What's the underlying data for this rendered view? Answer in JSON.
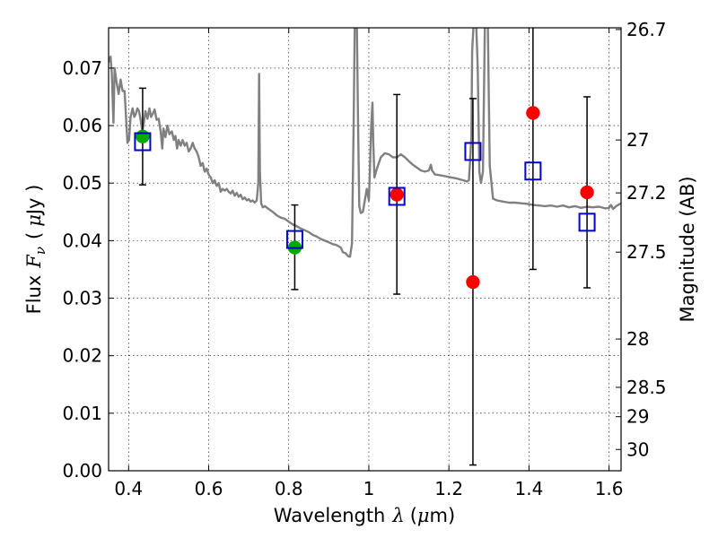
{
  "chart_data": {
    "type": "scatter",
    "xlabel_text": "Wavelength",
    "xlabel_symbol": "λ",
    "xlabel_unit_prefix": "(",
    "xlabel_unit_mu": "μ",
    "xlabel_unit_suffix": "m)",
    "ylabel_text": "Flux",
    "ylabel_symbol": "F",
    "ylabel_sub": "ν",
    "ylabel_unit_prefix": "(",
    "ylabel_unit_mu": "μ",
    "ylabel_unit_suffix": "Jy )",
    "y2label": "Magnitude (AB)",
    "xlim": [
      0.35,
      1.63
    ],
    "ylim": [
      0.0,
      0.077
    ],
    "grid": true,
    "x_ticks": [
      {
        "value": 0.4,
        "label": "0.4"
      },
      {
        "value": 0.6,
        "label": "0.6"
      },
      {
        "value": 0.8,
        "label": "0.8"
      },
      {
        "value": 1.0,
        "label": "1"
      },
      {
        "value": 1.2,
        "label": "1.2"
      },
      {
        "value": 1.4,
        "label": "1.4"
      },
      {
        "value": 1.6,
        "label": "1.6"
      }
    ],
    "y_ticks": [
      {
        "value": 0.0,
        "label": "0.00"
      },
      {
        "value": 0.01,
        "label": "0.01"
      },
      {
        "value": 0.02,
        "label": "0.02"
      },
      {
        "value": 0.03,
        "label": "0.03"
      },
      {
        "value": 0.04,
        "label": "0.04"
      },
      {
        "value": 0.05,
        "label": "0.05"
      },
      {
        "value": 0.06,
        "label": "0.06"
      },
      {
        "value": 0.07,
        "label": "0.07"
      }
    ],
    "mag_ticks": [
      {
        "flux": 0.0767,
        "label": "26.7"
      },
      {
        "flux": 0.0575,
        "label": "27"
      },
      {
        "flux": 0.0483,
        "label": "27.2"
      },
      {
        "flux": 0.038,
        "label": "27.5"
      },
      {
        "flux": 0.0229,
        "label": "28"
      },
      {
        "flux": 0.0145,
        "label": "28.5"
      },
      {
        "flux": 0.0094,
        "label": "29"
      },
      {
        "flux": 0.0037,
        "label": "30"
      }
    ],
    "model_spectrum": {
      "color": "#808080",
      "points": [
        [
          0.35,
          0.071
        ],
        [
          0.355,
          0.072
        ],
        [
          0.358,
          0.069
        ],
        [
          0.362,
          0.0605
        ],
        [
          0.365,
          0.07
        ],
        [
          0.37,
          0.0675
        ],
        [
          0.375,
          0.0655
        ],
        [
          0.38,
          0.068
        ],
        [
          0.385,
          0.066
        ],
        [
          0.39,
          0.066
        ],
        [
          0.394,
          0.061
        ],
        [
          0.397,
          0.057
        ],
        [
          0.401,
          0.0575
        ],
        [
          0.405,
          0.0615
        ],
        [
          0.41,
          0.063
        ],
        [
          0.414,
          0.0615
        ],
        [
          0.418,
          0.062
        ],
        [
          0.422,
          0.063
        ],
        [
          0.426,
          0.0625
        ],
        [
          0.43,
          0.061
        ],
        [
          0.434,
          0.059
        ],
        [
          0.438,
          0.0605
        ],
        [
          0.442,
          0.0625
        ],
        [
          0.447,
          0.0612
        ],
        [
          0.452,
          0.063
        ],
        [
          0.456,
          0.0615
        ],
        [
          0.46,
          0.062
        ],
        [
          0.465,
          0.0628
        ],
        [
          0.47,
          0.061
        ],
        [
          0.475,
          0.0612
        ],
        [
          0.48,
          0.059
        ],
        [
          0.484,
          0.056
        ],
        [
          0.487,
          0.0595
        ],
        [
          0.492,
          0.058
        ],
        [
          0.497,
          0.06
        ],
        [
          0.502,
          0.0585
        ],
        [
          0.508,
          0.059
        ],
        [
          0.513,
          0.0575
        ],
        [
          0.517,
          0.0582
        ],
        [
          0.521,
          0.056
        ],
        [
          0.525,
          0.0575
        ],
        [
          0.53,
          0.0565
        ],
        [
          0.535,
          0.0575
        ],
        [
          0.54,
          0.0565
        ],
        [
          0.545,
          0.057
        ],
        [
          0.55,
          0.0555
        ],
        [
          0.555,
          0.056
        ],
        [
          0.56,
          0.057
        ],
        [
          0.565,
          0.056
        ],
        [
          0.57,
          0.0555
        ],
        [
          0.575,
          0.0545
        ],
        [
          0.58,
          0.053
        ],
        [
          0.585,
          0.0535
        ],
        [
          0.59,
          0.052
        ],
        [
          0.595,
          0.0525
        ],
        [
          0.6,
          0.0515
        ],
        [
          0.605,
          0.051
        ],
        [
          0.61,
          0.05
        ],
        [
          0.615,
          0.0505
        ],
        [
          0.62,
          0.0495
        ],
        [
          0.625,
          0.05
        ],
        [
          0.63,
          0.0485
        ],
        [
          0.635,
          0.049
        ],
        [
          0.64,
          0.0487
        ],
        [
          0.645,
          0.049
        ],
        [
          0.65,
          0.0485
        ],
        [
          0.655,
          0.0482
        ],
        [
          0.66,
          0.0487
        ],
        [
          0.665,
          0.0478
        ],
        [
          0.67,
          0.0483
        ],
        [
          0.675,
          0.0476
        ],
        [
          0.68,
          0.048
        ],
        [
          0.685,
          0.0472
        ],
        [
          0.69,
          0.0475
        ],
        [
          0.695,
          0.047
        ],
        [
          0.7,
          0.0472
        ],
        [
          0.705,
          0.0468
        ],
        [
          0.71,
          0.047
        ],
        [
          0.715,
          0.0466
        ],
        [
          0.72,
          0.047
        ],
        [
          0.724,
          0.05
        ],
        [
          0.726,
          0.069
        ],
        [
          0.728,
          0.052
        ],
        [
          0.731,
          0.0465
        ],
        [
          0.735,
          0.0458
        ],
        [
          0.74,
          0.046
        ],
        [
          0.75,
          0.0455
        ],
        [
          0.76,
          0.045
        ],
        [
          0.77,
          0.0444
        ],
        [
          0.78,
          0.044
        ],
        [
          0.79,
          0.0438
        ],
        [
          0.8,
          0.0433
        ],
        [
          0.81,
          0.0428
        ],
        [
          0.82,
          0.0425
        ],
        [
          0.83,
          0.0421
        ],
        [
          0.84,
          0.0418
        ],
        [
          0.85,
          0.0415
        ],
        [
          0.86,
          0.041
        ],
        [
          0.87,
          0.0407
        ],
        [
          0.88,
          0.0403
        ],
        [
          0.89,
          0.04
        ],
        [
          0.9,
          0.0397
        ],
        [
          0.91,
          0.0394
        ],
        [
          0.92,
          0.0392
        ],
        [
          0.93,
          0.0388
        ],
        [
          0.935,
          0.038
        ],
        [
          0.942,
          0.0378
        ],
        [
          0.948,
          0.0373
        ],
        [
          0.953,
          0.0372
        ],
        [
          0.958,
          0.0395
        ],
        [
          0.962,
          0.06
        ],
        [
          0.965,
          0.078
        ],
        [
          0.97,
          0.078
        ],
        [
          0.973,
          0.061
        ],
        [
          0.976,
          0.046
        ],
        [
          0.98,
          0.0448
        ],
        [
          0.985,
          0.045
        ],
        [
          0.99,
          0.047
        ],
        [
          0.995,
          0.049
        ],
        [
          1.0,
          0.047
        ],
        [
          1.003,
          0.053
        ],
        [
          1.006,
          0.06
        ],
        [
          1.009,
          0.064
        ],
        [
          1.011,
          0.057
        ],
        [
          1.014,
          0.051
        ],
        [
          1.02,
          0.0525
        ],
        [
          1.03,
          0.0545
        ],
        [
          1.04,
          0.0552
        ],
        [
          1.05,
          0.055
        ],
        [
          1.06,
          0.0545
        ],
        [
          1.07,
          0.0545
        ],
        [
          1.08,
          0.055
        ],
        [
          1.09,
          0.0545
        ],
        [
          1.1,
          0.0538
        ],
        [
          1.11,
          0.0532
        ],
        [
          1.12,
          0.0527
        ],
        [
          1.13,
          0.0522
        ],
        [
          1.14,
          0.052
        ],
        [
          1.15,
          0.0522
        ],
        [
          1.155,
          0.0532
        ],
        [
          1.158,
          0.0522
        ],
        [
          1.165,
          0.0515
        ],
        [
          1.175,
          0.0514
        ],
        [
          1.19,
          0.0512
        ],
        [
          1.205,
          0.051
        ],
        [
          1.22,
          0.0508
        ],
        [
          1.235,
          0.0505
        ],
        [
          1.245,
          0.0503
        ],
        [
          1.25,
          0.0505
        ],
        [
          1.253,
          0.054
        ],
        [
          1.256,
          0.058
        ],
        [
          1.258,
          0.073
        ],
        [
          1.262,
          0.078
        ],
        [
          1.268,
          0.078
        ],
        [
          1.272,
          0.07
        ],
        [
          1.276,
          0.052
        ],
        [
          1.28,
          0.05
        ],
        [
          1.285,
          0.052
        ],
        [
          1.29,
          0.078
        ],
        [
          1.297,
          0.078
        ],
        [
          1.302,
          0.053
        ],
        [
          1.31,
          0.0473
        ],
        [
          1.32,
          0.047
        ],
        [
          1.335,
          0.0468
        ],
        [
          1.35,
          0.0466
        ],
        [
          1.365,
          0.0466
        ],
        [
          1.38,
          0.0465
        ],
        [
          1.395,
          0.0464
        ],
        [
          1.41,
          0.0462
        ],
        [
          1.425,
          0.0461
        ],
        [
          1.44,
          0.046
        ],
        [
          1.455,
          0.0461
        ],
        [
          1.47,
          0.0459
        ],
        [
          1.485,
          0.0461
        ],
        [
          1.5,
          0.0458
        ],
        [
          1.515,
          0.046
        ],
        [
          1.53,
          0.0457
        ],
        [
          1.545,
          0.0459
        ],
        [
          1.56,
          0.0458
        ],
        [
          1.575,
          0.0459
        ],
        [
          1.59,
          0.0456
        ],
        [
          1.6,
          0.0457
        ],
        [
          1.605,
          0.0462
        ],
        [
          1.61,
          0.0455
        ],
        [
          1.618,
          0.046
        ],
        [
          1.63,
          0.0465
        ]
      ]
    },
    "observed": [
      {
        "x": 0.435,
        "y": 0.0581,
        "color": "#00aa00"
      },
      {
        "x": 0.815,
        "y": 0.0388,
        "color": "#00aa00"
      },
      {
        "x": 1.07,
        "y": 0.048,
        "color": "#ff0000"
      },
      {
        "x": 1.26,
        "y": 0.0328,
        "color": "#ff0000"
      },
      {
        "x": 1.41,
        "y": 0.0622,
        "color": "#ff0000"
      },
      {
        "x": 1.545,
        "y": 0.0484,
        "color": "#ff0000"
      }
    ],
    "model_photometry": {
      "color": "#0000cc",
      "points": [
        {
          "x": 0.435,
          "y": 0.0572
        },
        {
          "x": 0.815,
          "y": 0.0402
        },
        {
          "x": 1.07,
          "y": 0.0477
        },
        {
          "x": 1.26,
          "y": 0.0555
        },
        {
          "x": 1.41,
          "y": 0.0521
        },
        {
          "x": 1.545,
          "y": 0.0432
        }
      ]
    },
    "errorbars": [
      {
        "x": 0.435,
        "low": 0.0497,
        "high": 0.0665
      },
      {
        "x": 0.815,
        "low": 0.0315,
        "high": 0.0462
      },
      {
        "x": 1.07,
        "low": 0.0307,
        "high": 0.0654
      },
      {
        "x": 1.26,
        "low": 0.001,
        "high": 0.0647
      },
      {
        "x": 1.41,
        "low": 0.035,
        "high": 0.0775
      },
      {
        "x": 1.545,
        "low": 0.0318,
        "high": 0.065
      }
    ]
  }
}
